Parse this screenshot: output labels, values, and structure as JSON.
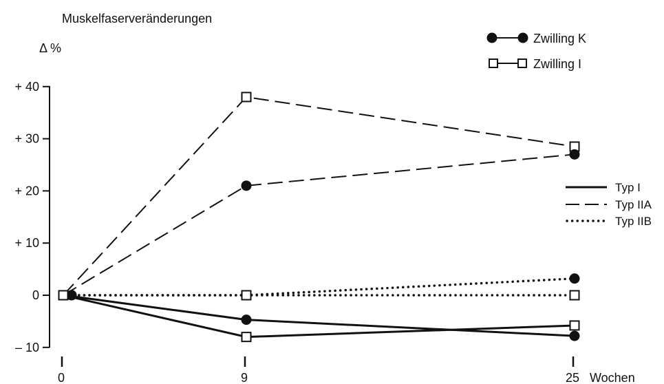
{
  "chart_data": {
    "type": "line",
    "ylabel": "Muskelfaserveränderungen",
    "yunit": "Δ %",
    "ylim": [
      -10,
      40
    ],
    "yticks": [
      40,
      30,
      20,
      10,
      0,
      -10
    ],
    "ytick_labels": [
      "+ 40",
      "+ 30",
      "+ 20",
      "+ 10",
      "0",
      "– 10"
    ],
    "x": [
      0,
      9,
      25
    ],
    "xtick_labels": [
      "0",
      "9",
      "25"
    ],
    "xunit": "Wochen",
    "twins": [
      {
        "name": "Zwilling K",
        "marker": "filled-circle"
      },
      {
        "name": "Zwilling I",
        "marker": "open-square"
      }
    ],
    "fiber_types": [
      {
        "name": "Typ I",
        "style": "solid"
      },
      {
        "name": "Typ IIA",
        "style": "dashed"
      },
      {
        "name": "Typ IIB",
        "style": "dotted"
      }
    ],
    "series": [
      {
        "twin": "Zwilling I",
        "fiber": "Typ IIA",
        "values": [
          0,
          38,
          28.5
        ]
      },
      {
        "twin": "Zwilling K",
        "fiber": "Typ IIA",
        "values": [
          0,
          21,
          27
        ]
      },
      {
        "twin": "Zwilling K",
        "fiber": "Typ IIB",
        "values": [
          0,
          0,
          3.2
        ]
      },
      {
        "twin": "Zwilling I",
        "fiber": "Typ IIB",
        "values": [
          0,
          0,
          0
        ]
      },
      {
        "twin": "Zwilling K",
        "fiber": "Typ I",
        "values": [
          0,
          -4.7,
          -7.8
        ]
      },
      {
        "twin": "Zwilling I",
        "fiber": "Typ I",
        "values": [
          0,
          -8,
          -5.8
        ]
      }
    ],
    "colors": {
      "ink": "#111111",
      "background": "#ffffff"
    }
  }
}
